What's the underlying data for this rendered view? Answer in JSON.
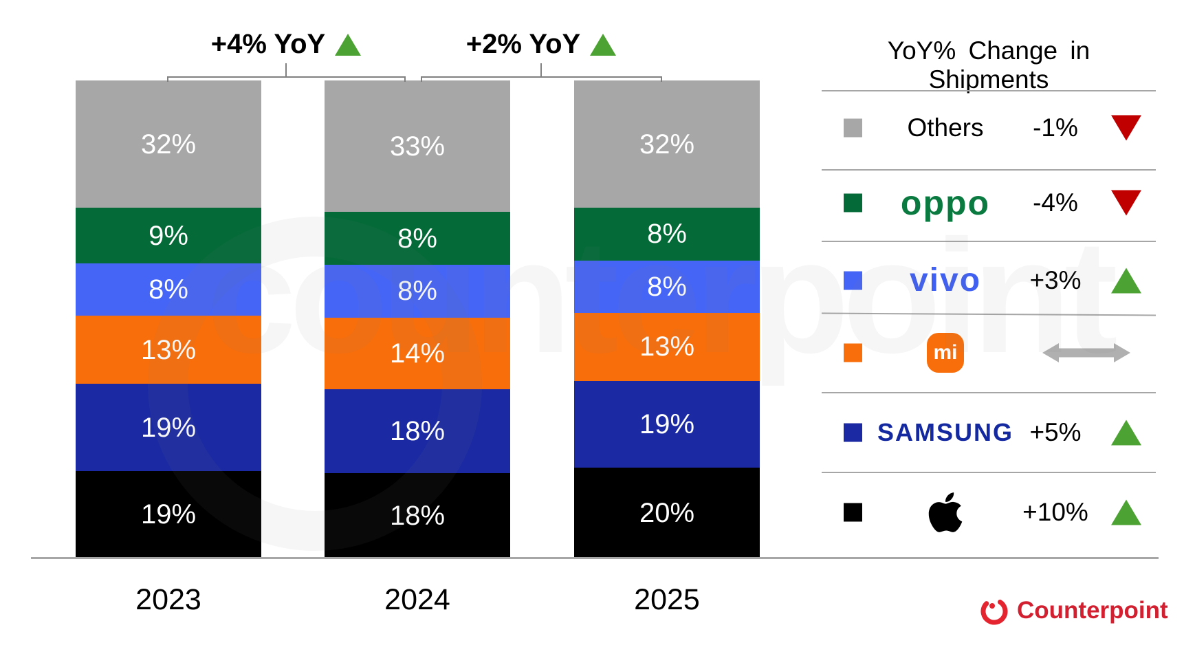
{
  "chart_data": {
    "type": "bar",
    "subtype": "stacked-100",
    "title": "",
    "categories": [
      "2023",
      "2024",
      "2025"
    ],
    "value_suffix": "%",
    "stack_order_top_to_bottom": [
      "Others",
      "OPPO",
      "vivo",
      "Xiaomi",
      "Samsung",
      "Apple"
    ],
    "series": [
      {
        "name": "Apple",
        "color": "#000000",
        "values": [
          19,
          18,
          20
        ]
      },
      {
        "name": "Samsung",
        "color": "#1b2aa2",
        "values": [
          19,
          18,
          19
        ]
      },
      {
        "name": "Xiaomi",
        "color": "#f86e0a",
        "values": [
          13,
          14,
          13
        ]
      },
      {
        "name": "vivo",
        "color": "#4565f6",
        "values": [
          8,
          8,
          8
        ]
      },
      {
        "name": "OPPO",
        "color": "#046a38",
        "values": [
          9,
          8,
          8
        ]
      },
      {
        "name": "Others",
        "color": "#a7a7a7",
        "values": [
          32,
          33,
          32
        ]
      }
    ],
    "yoy_annotations": [
      {
        "label": "+4% YoY",
        "direction": "up",
        "between": [
          "2023",
          "2024"
        ]
      },
      {
        "label": "+2% YoY",
        "direction": "up",
        "between": [
          "2024",
          "2025"
        ]
      }
    ],
    "legend_position": "right",
    "grid": false,
    "axis_labels_visible": [
      "2023",
      "2024",
      "2025"
    ]
  },
  "legend": {
    "title": "YoY% Change in Shipments",
    "rows": [
      {
        "brand": "Others",
        "logo_text": "Others",
        "change": "-1%",
        "direction": "down"
      },
      {
        "brand": "OPPO",
        "logo_text": "oppo",
        "change": "-4%",
        "direction": "down"
      },
      {
        "brand": "vivo",
        "logo_text": "vivo",
        "change": "+3%",
        "direction": "up"
      },
      {
        "brand": "Xiaomi",
        "logo_text": "mi",
        "change": "",
        "direction": "flat",
        "icon": "xiaomi-mi-logo"
      },
      {
        "brand": "Samsung",
        "logo_text": "SAMSUNG",
        "change": "+5%",
        "direction": "up"
      },
      {
        "brand": "Apple",
        "logo_text": "",
        "change": "+10%",
        "direction": "up",
        "icon": "apple-logo"
      }
    ]
  },
  "footer": {
    "brand": "Counterpoint"
  },
  "watermark": {
    "text": "counterpoint"
  },
  "colors": {
    "others": "#a7a7a7",
    "oppo_bar": "#046a38",
    "oppo_logo": "#0a7a40",
    "vivo_bar": "#4565f6",
    "vivo_logo": "#4060f2",
    "xiaomi": "#f86e0a",
    "samsung_bar": "#1b2aa2",
    "samsung_logo": "#1428a0",
    "apple": "#000000",
    "up_triangle": "#4ca232",
    "down_triangle": "#c00000",
    "flat_arrow": "#b0b0b0",
    "axis_line": "#a6a6a6",
    "bracket_line": "#808080",
    "counterpoint_red": "#d22030"
  }
}
